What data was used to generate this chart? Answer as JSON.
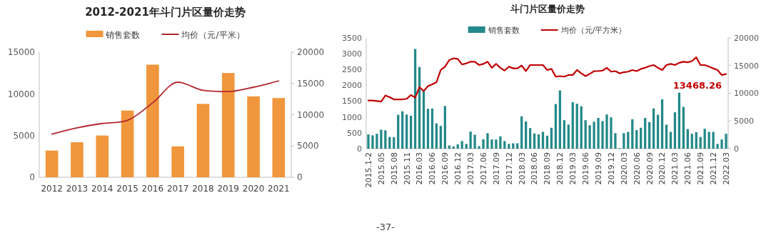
{
  "chart_data": [
    {
      "type": "bar",
      "title": "2012-2021年斗门片区量价走势",
      "categories": [
        "2012",
        "2013",
        "2014",
        "2015",
        "2016",
        "2017",
        "2018",
        "2019",
        "2020",
        "2021"
      ],
      "series": [
        {
          "name": "销售套数",
          "color": "#f0963c",
          "values": [
            3200,
            4200,
            5000,
            8000,
            13500,
            3700,
            8800,
            12500,
            9700,
            9500
          ]
        },
        {
          "name": "均价（元/平米）",
          "type": "line",
          "axis": "y2",
          "color": "#b3262e",
          "values": [
            6900,
            7900,
            8600,
            9100,
            11900,
            15200,
            13900,
            13700,
            14400,
            15400
          ]
        }
      ],
      "ylim": [
        0,
        15000
      ],
      "yticks": [
        0,
        5000,
        10000,
        15000
      ],
      "y2lim": [
        0,
        20000
      ],
      "y2ticks": [
        0,
        5000,
        10000,
        15000,
        20000
      ],
      "legend": "top",
      "grid": false,
      "marker": "none",
      "line_style": "solid"
    },
    {
      "type": "bar",
      "title": "斗门片区量价走势",
      "categories": [
        "2015.1-2",
        null,
        null,
        "2015.05",
        null,
        null,
        "2015.08",
        null,
        null,
        "2015.11",
        null,
        null,
        "2016.03",
        null,
        null,
        "2016.06",
        null,
        null,
        "2016.09",
        null,
        null,
        "2016.12",
        null,
        null,
        "2017.03",
        null,
        null,
        "2017.06",
        null,
        null,
        "2017.09",
        null,
        null,
        "2017.12",
        null,
        null,
        "2018.03",
        null,
        null,
        "2018.06",
        null,
        null,
        "2018.09",
        null,
        null,
        "2018.12",
        null,
        null,
        "2019.03",
        null,
        null,
        "2019.06",
        null,
        null,
        "2019.09",
        null,
        null,
        "2019.12",
        null,
        null,
        "2020.03",
        null,
        null,
        "2020.06",
        null,
        null,
        "2020.09",
        null,
        null,
        "2020.12",
        null,
        null,
        "2021.03",
        null,
        null,
        "2021.06",
        null,
        null,
        "2021.09",
        null,
        null,
        "2021.12",
        null,
        null,
        "2022.03"
      ],
      "series": [
        {
          "name": "销售套数",
          "color": "#23898a",
          "values": [
            450,
            420,
            470,
            600,
            580,
            370,
            360,
            1070,
            1180,
            1080,
            1040,
            3150,
            2580,
            1840,
            1260,
            1270,
            800,
            720,
            1350,
            100,
            70,
            140,
            240,
            150,
            540,
            440,
            80,
            300,
            490,
            290,
            290,
            390,
            240,
            150,
            170,
            170,
            1020,
            860,
            650,
            480,
            450,
            530,
            410,
            660,
            1410,
            1840,
            900,
            760,
            1470,
            1420,
            1340,
            900,
            740,
            850,
            970,
            870,
            1080,
            990,
            490,
            20,
            490,
            530,
            930,
            590,
            660,
            970,
            840,
            1270,
            1070,
            1560,
            760,
            530,
            1150,
            1770,
            1320,
            620,
            470,
            520,
            370,
            630,
            530,
            530,
            150,
            290,
            470
          ]
        },
        {
          "name": "均价（元/平方米）",
          "type": "line",
          "axis": "y2",
          "color": "#c00000",
          "values": [
            8700,
            8700,
            8600,
            8500,
            9600,
            9300,
            8900,
            8900,
            8900,
            9000,
            9700,
            9200,
            11100,
            10400,
            11300,
            11600,
            12000,
            14200,
            14800,
            16000,
            16300,
            16200,
            15200,
            15400,
            15700,
            15700,
            15100,
            15300,
            15700,
            14600,
            15300,
            14600,
            14100,
            14800,
            14500,
            14500,
            15000,
            14000,
            15100,
            15100,
            15100,
            15100,
            14200,
            14400,
            13000,
            13100,
            13000,
            13300,
            13300,
            14200,
            13600,
            13100,
            13500,
            14000,
            14000,
            14100,
            14600,
            13900,
            14000,
            13600,
            13800,
            13900,
            14200,
            14000,
            14400,
            14600,
            14900,
            15100,
            14600,
            14200,
            15100,
            15300,
            15100,
            15500,
            15700,
            15600,
            15800,
            16500,
            15100,
            15100,
            14800,
            14500,
            14200,
            13300,
            13468.26
          ],
          "value_labels": [
            null,
            null,
            null,
            null,
            null,
            null,
            null,
            null,
            null,
            null,
            null,
            null,
            null,
            null,
            null,
            null,
            null,
            null,
            null,
            null,
            null,
            null,
            null,
            null,
            null,
            null,
            null,
            null,
            null,
            null,
            null,
            null,
            null,
            null,
            null,
            null,
            null,
            null,
            null,
            null,
            null,
            null,
            null,
            null,
            null,
            null,
            null,
            null,
            null,
            null,
            null,
            null,
            null,
            null,
            null,
            null,
            null,
            null,
            null,
            null,
            null,
            null,
            null,
            null,
            null,
            null,
            null,
            null,
            null,
            null,
            null,
            null,
            null,
            null,
            null,
            null,
            null,
            null,
            null,
            null,
            null,
            null,
            null,
            null,
            "13468.26"
          ]
        }
      ],
      "ylim": [
        0,
        3500
      ],
      "yticks": [
        0,
        500,
        1000,
        1500,
        2000,
        2500,
        3000,
        3500
      ],
      "y2lim": [
        0,
        20000
      ],
      "y2ticks": [
        0,
        5000,
        10000,
        15000,
        20000
      ],
      "legend": "top",
      "grid": false,
      "marker": "none",
      "line_style": "solid",
      "annotations": [
        "-37-"
      ]
    }
  ]
}
